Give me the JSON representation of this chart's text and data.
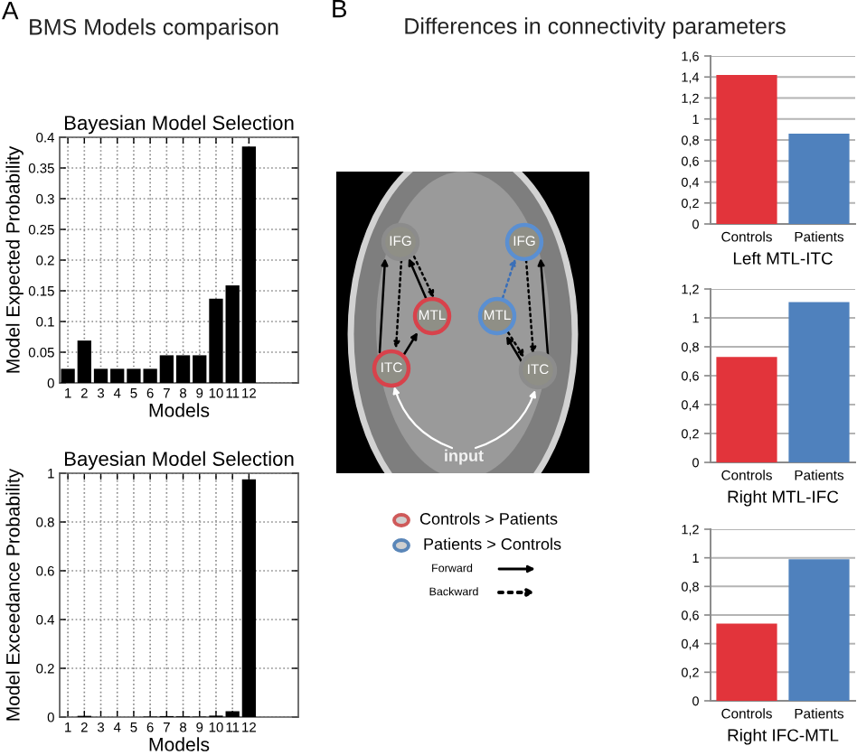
{
  "chart_data": [
    {
      "type": "bar",
      "title": "Bayesian Model Selection",
      "xlabel": "Models",
      "ylabel": "Model Expected Probability",
      "annotations": [
        "A",
        "BMS Models comparison"
      ],
      "categories": [
        "1",
        "2",
        "3",
        "4",
        "5",
        "6",
        "7",
        "8",
        "9",
        "10",
        "11",
        "12"
      ],
      "values": [
        0.023,
        0.069,
        0.023,
        0.023,
        0.023,
        0.023,
        0.045,
        0.045,
        0.045,
        0.137,
        0.159,
        0.385
      ],
      "color": "#000000",
      "ylim": [
        0,
        0.4
      ],
      "yticks": [
        0,
        0.05,
        0.1,
        0.15,
        0.2,
        0.25,
        0.3,
        0.35,
        0.4
      ],
      "grid": true
    },
    {
      "type": "bar",
      "title": "Bayesian Model Selection",
      "xlabel": "Models",
      "ylabel": "Model Exceedance Probability",
      "categories": [
        "1",
        "2",
        "3",
        "4",
        "5",
        "6",
        "7",
        "8",
        "9",
        "10",
        "11",
        "12"
      ],
      "values": [
        0,
        0.005,
        0,
        0,
        0,
        0.002,
        0.004,
        0.003,
        0.002,
        0.006,
        0.024,
        0.975
      ],
      "color": "#000000",
      "ylim": [
        0,
        1
      ],
      "yticks": [
        0,
        0.2,
        0.4,
        0.6,
        0.8,
        1
      ],
      "grid": true
    },
    {
      "type": "other",
      "title": "Differences in connectivity parameters",
      "annotations": [
        "B",
        "IFG",
        "MTL",
        "ITC",
        "IFG",
        "MTL",
        "ITC",
        "input",
        "Controls > Patients",
        "Patients > Controls",
        "Forward",
        "Backward"
      ]
    },
    {
      "type": "bar",
      "xlabel": "Left MTL-ITC",
      "categories": [
        "Controls",
        "Patients"
      ],
      "values": [
        1.42,
        0.86
      ],
      "colors": [
        "#e2343b",
        "#4f81bd"
      ],
      "ylim": [
        0,
        1.6
      ],
      "yticks": [
        0,
        {
          "value": 0.2,
          "label": "0,2"
        },
        {
          "value": 0.4,
          "label": "0,4"
        },
        {
          "value": 0.6,
          "label": "0,6"
        },
        {
          "value": 0.8,
          "label": "0,8"
        },
        1,
        {
          "value": 1.2,
          "label": "1,2"
        },
        {
          "value": 1.4,
          "label": "1,4"
        },
        {
          "value": 1.6,
          "label": "1,6"
        }
      ],
      "grid": "y"
    },
    {
      "type": "bar",
      "xlabel": "Right MTL-IFC",
      "categories": [
        "Controls",
        "Patients"
      ],
      "values": [
        0.73,
        1.11
      ],
      "colors": [
        "#e2343b",
        "#4f81bd"
      ],
      "ylim": [
        0,
        1.2
      ],
      "yticks": [
        0,
        {
          "value": 0.2,
          "label": "0,2"
        },
        {
          "value": 0.4,
          "label": "0,4"
        },
        {
          "value": 0.6,
          "label": "0,6"
        },
        {
          "value": 0.8,
          "label": "0,8"
        },
        1,
        {
          "value": 1.2,
          "label": "1,2"
        }
      ],
      "grid": "y"
    },
    {
      "type": "bar",
      "xlabel": "Right IFC-MTL",
      "categories": [
        "Controls",
        "Patients"
      ],
      "values": [
        0.54,
        0.99
      ],
      "colors": [
        "#e2343b",
        "#4f81bd"
      ],
      "ylim": [
        0,
        1.2
      ],
      "yticks": [
        0,
        {
          "value": 0.2,
          "label": "0,2"
        },
        {
          "value": 0.4,
          "label": "0,4"
        },
        {
          "value": 0.6,
          "label": "0,6"
        },
        {
          "value": 0.8,
          "label": "0,8"
        },
        1,
        {
          "value": 1.2,
          "label": "1,2"
        }
      ],
      "grid": "y"
    }
  ]
}
